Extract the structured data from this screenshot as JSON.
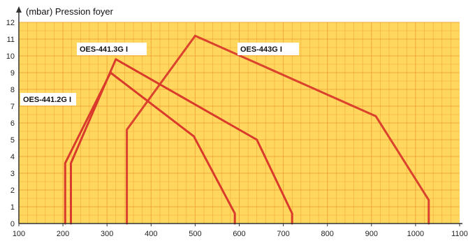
{
  "chart_data": {
    "type": "line",
    "title": "",
    "ylabel": "(mbar) Pression foyer",
    "xlabel": "",
    "xlim": [
      100,
      1100
    ],
    "ylim": [
      0,
      12
    ],
    "x_ticks": [
      "100",
      "200",
      "300",
      "400",
      "500",
      "600",
      "700",
      "800",
      "900",
      "1000",
      "1100"
    ],
    "y_ticks": [
      "0",
      "1",
      "2",
      "3",
      "4",
      "5",
      "6",
      "7",
      "8",
      "9",
      "10",
      "11",
      "12"
    ],
    "grid": true,
    "background_color": "#FFD75E",
    "grid_color": "#F2A93A",
    "series": [
      {
        "name": "OES-441.2G I",
        "color": "#D93A2B",
        "points": [
          [
            205,
            0
          ],
          [
            205,
            3.6
          ],
          [
            308,
            9.0
          ],
          [
            497,
            5.2
          ],
          [
            590,
            0.6
          ],
          [
            590,
            0
          ]
        ]
      },
      {
        "name": "OES-441.3G I",
        "color": "#D93A2B",
        "points": [
          [
            218,
            0
          ],
          [
            218,
            3.6
          ],
          [
            320,
            9.8
          ],
          [
            640,
            5.0
          ],
          [
            720,
            0.6
          ],
          [
            720,
            0
          ]
        ]
      },
      {
        "name": "OES-443G I",
        "color": "#D93A2B",
        "points": [
          [
            345,
            0
          ],
          [
            345,
            5.6
          ],
          [
            500,
            11.2
          ],
          [
            910,
            6.4
          ],
          [
            1030,
            1.4
          ],
          [
            1030,
            0
          ]
        ]
      }
    ]
  }
}
